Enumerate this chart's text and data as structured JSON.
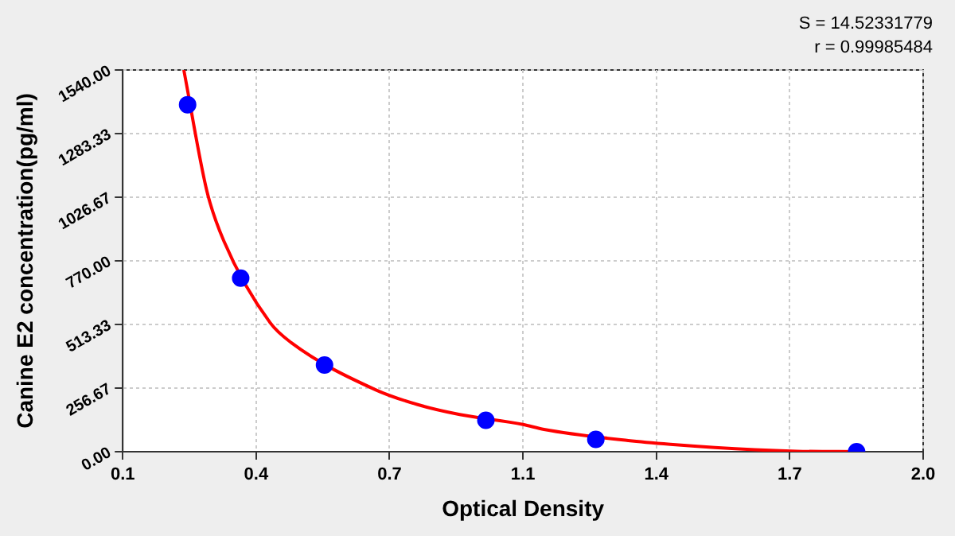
{
  "chart_data": {
    "type": "scatter",
    "xlabel": "Optical Density",
    "ylabel": "Canine E2 concentration(pg/ml)",
    "annotations": [
      "S = 14.52331779",
      "r = 0.99985484"
    ],
    "xlim": [
      0.1,
      2.0
    ],
    "xticks": [
      0.1,
      {
        "value": 0.4167,
        "label": "0.4"
      },
      {
        "value": 0.7333,
        "label": "0.7"
      },
      {
        "value": 1.05,
        "label": "1.1"
      },
      {
        "value": 1.3667,
        "label": "1.4"
      },
      {
        "value": 1.6833,
        "label": "1.7"
      },
      {
        "value": 2.0,
        "label": "2.0"
      }
    ],
    "ylim": [
      0,
      1540
    ],
    "yticks": [
      {
        "value": 0,
        "label": "0.00"
      },
      {
        "value": 256.67,
        "label": "256.67"
      },
      {
        "value": 513.33,
        "label": "513.33"
      },
      {
        "value": 770,
        "label": "770.00"
      },
      {
        "value": 1026.67,
        "label": "1026.67"
      },
      {
        "value": 1283.33,
        "label": "1283.33"
      },
      {
        "value": 1540,
        "label": "1540.00"
      }
    ],
    "grid": true,
    "legend": false,
    "series": [
      {
        "type": "line",
        "color": "#ff0000",
        "marker": "none",
        "x": [
          0.245,
          0.3,
          0.34,
          0.45,
          0.5,
          0.7,
          0.8,
          0.9,
          1.05,
          1.1,
          1.3,
          1.4,
          1.6,
          1.7,
          1.85
        ],
        "values": [
          1540,
          1050,
          850,
          520,
          440,
          250,
          190,
          150,
          110,
          90,
          45,
          30,
          8,
          2,
          0
        ]
      },
      {
        "color": "#0000ff",
        "marker": "circle",
        "x": [
          0.254,
          0.38,
          0.579,
          0.962,
          1.223,
          1.842
        ],
        "values": [
          1400,
          700,
          350,
          127,
          50,
          0
        ]
      }
    ]
  }
}
